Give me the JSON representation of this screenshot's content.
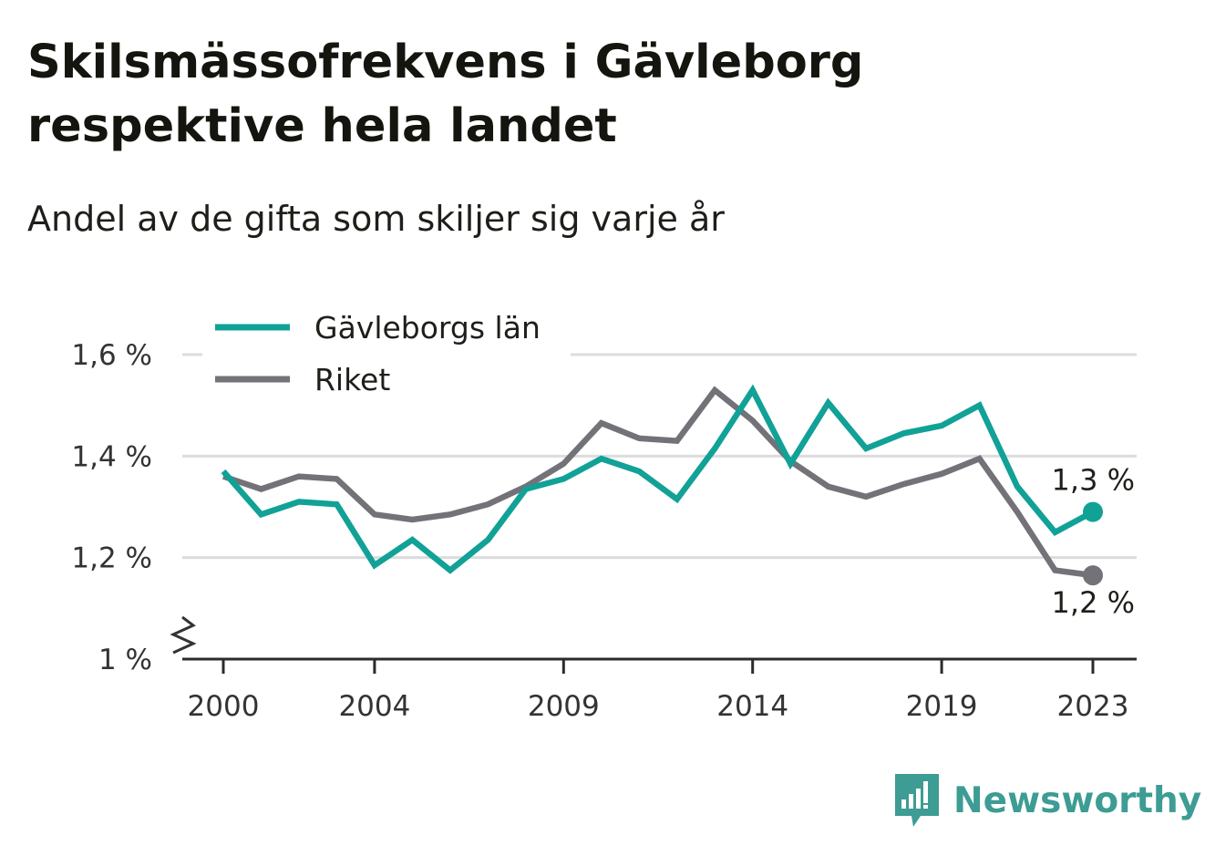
{
  "header": {
    "title": "Skilsmässofrekvens i Gävleborg\nrespektive hela landet",
    "subtitle": "Andel av de gifta som skiljer sig varje år"
  },
  "brand": {
    "name": "Newsworthy",
    "icon": "bar-chart-speech-bubble-icon",
    "color": "#3d9c93"
  },
  "chart_data": {
    "type": "line",
    "title": "Skilsmässofrekvens i Gävleborg respektive hela landet",
    "subtitle": "Andel av de gifta som skiljer sig varje år",
    "xlabel": "",
    "ylabel": "",
    "x": [
      2000,
      2001,
      2002,
      2003,
      2004,
      2005,
      2006,
      2007,
      2008,
      2009,
      2010,
      2011,
      2012,
      2013,
      2014,
      2015,
      2016,
      2017,
      2018,
      2019,
      2020,
      2021,
      2022,
      2023
    ],
    "x_ticks": [
      2000,
      2004,
      2009,
      2014,
      2019,
      2023
    ],
    "x_tick_labels": [
      "2000",
      "2004",
      "2009",
      "2014",
      "2019",
      "2023"
    ],
    "ylim": [
      1.0,
      1.6
    ],
    "y_ticks": [
      1.0,
      1.2,
      1.4,
      1.6
    ],
    "y_tick_labels": [
      "1 %",
      "1,2 %",
      "1,4 %",
      "1,6 %"
    ],
    "y_axis_break": true,
    "grid": true,
    "legend_position": "top-left",
    "series": [
      {
        "name": "Gävleborgs län",
        "color": "#11a197",
        "values": [
          1.37,
          1.285,
          1.31,
          1.305,
          1.185,
          1.235,
          1.175,
          1.235,
          1.335,
          1.355,
          1.395,
          1.37,
          1.315,
          1.415,
          1.53,
          1.385,
          1.505,
          1.415,
          1.445,
          1.46,
          1.5,
          1.34,
          1.25,
          1.29
        ],
        "end_label": "1,3 %"
      },
      {
        "name": "Riket",
        "color": "#737278",
        "values": [
          1.36,
          1.335,
          1.36,
          1.355,
          1.285,
          1.275,
          1.285,
          1.305,
          1.34,
          1.385,
          1.465,
          1.435,
          1.43,
          1.53,
          1.47,
          1.39,
          1.34,
          1.32,
          1.345,
          1.365,
          1.395,
          1.29,
          1.175,
          1.165
        ],
        "end_label": "1,2 %"
      }
    ]
  }
}
